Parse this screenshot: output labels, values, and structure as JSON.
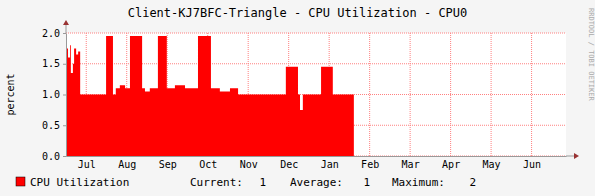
{
  "chart_data": {
    "type": "area",
    "title": "Client-KJ7BFC-Triangle - CPU Utilization - CPU0",
    "y_label": "percent",
    "annotations": [
      "RRDTOOL / TOBI OETIKER"
    ],
    "x": [
      0,
      0.05,
      0.1,
      0.12,
      0.17,
      0.2,
      0.25,
      0.3,
      0.35,
      0.99,
      1.16,
      1.23,
      1.33,
      1.46,
      1.58,
      1.88,
      1.95,
      2.07,
      2.27,
      2.49,
      2.69,
      2.94,
      3.26,
      3.58,
      3.8,
      4.05,
      4.25,
      5.43,
      5.73,
      5.78,
      5.85,
      6.3,
      6.59,
      7.11
    ],
    "series": [
      {
        "name": "CPU Utilization",
        "color": "#ff0000",
        "values": [
          1.75,
          1.6,
          1.8,
          1.35,
          1.5,
          1.75,
          1.65,
          1.7,
          1.0,
          1.95,
          1.0,
          1.1,
          1.15,
          1.1,
          1.95,
          1.1,
          1.05,
          1.1,
          1.95,
          1.1,
          1.15,
          1.1,
          1.95,
          1.1,
          1.05,
          1.1,
          1.0,
          1.45,
          1.0,
          0.75,
          1.0,
          1.45,
          1.0,
          1.0
        ]
      }
    ],
    "xlim": [
      0,
      12.35
    ],
    "xticks": [
      {
        "value": 0.5,
        "label": "Jul"
      },
      {
        "value": 1.5,
        "label": "Aug"
      },
      {
        "value": 2.5,
        "label": "Sep"
      },
      {
        "value": 3.5,
        "label": "Oct"
      },
      {
        "value": 4.5,
        "label": "Nov"
      },
      {
        "value": 5.5,
        "label": "Dec"
      },
      {
        "value": 6.5,
        "label": "Jan"
      },
      {
        "value": 7.5,
        "label": "Feb"
      },
      {
        "value": 8.5,
        "label": "Mar"
      },
      {
        "value": 9.5,
        "label": "Apr"
      },
      {
        "value": 10.5,
        "label": "May"
      },
      {
        "value": 11.5,
        "label": "Jun"
      }
    ],
    "ylim": [
      0,
      2
    ],
    "yticks": [
      {
        "value": 0,
        "label": "0.0"
      },
      {
        "value": 0.5,
        "label": "0.5"
      },
      {
        "value": 1,
        "label": "1.0"
      },
      {
        "value": 1.5,
        "label": "1.5"
      },
      {
        "value": 2,
        "label": "2.0"
      }
    ],
    "grid": true,
    "legend": "bottom",
    "stats": [
      {
        "label": "Current:",
        "value": 1
      },
      {
        "label": "Average:",
        "value": 1
      },
      {
        "label": "Maximum:",
        "value": 2
      }
    ]
  }
}
